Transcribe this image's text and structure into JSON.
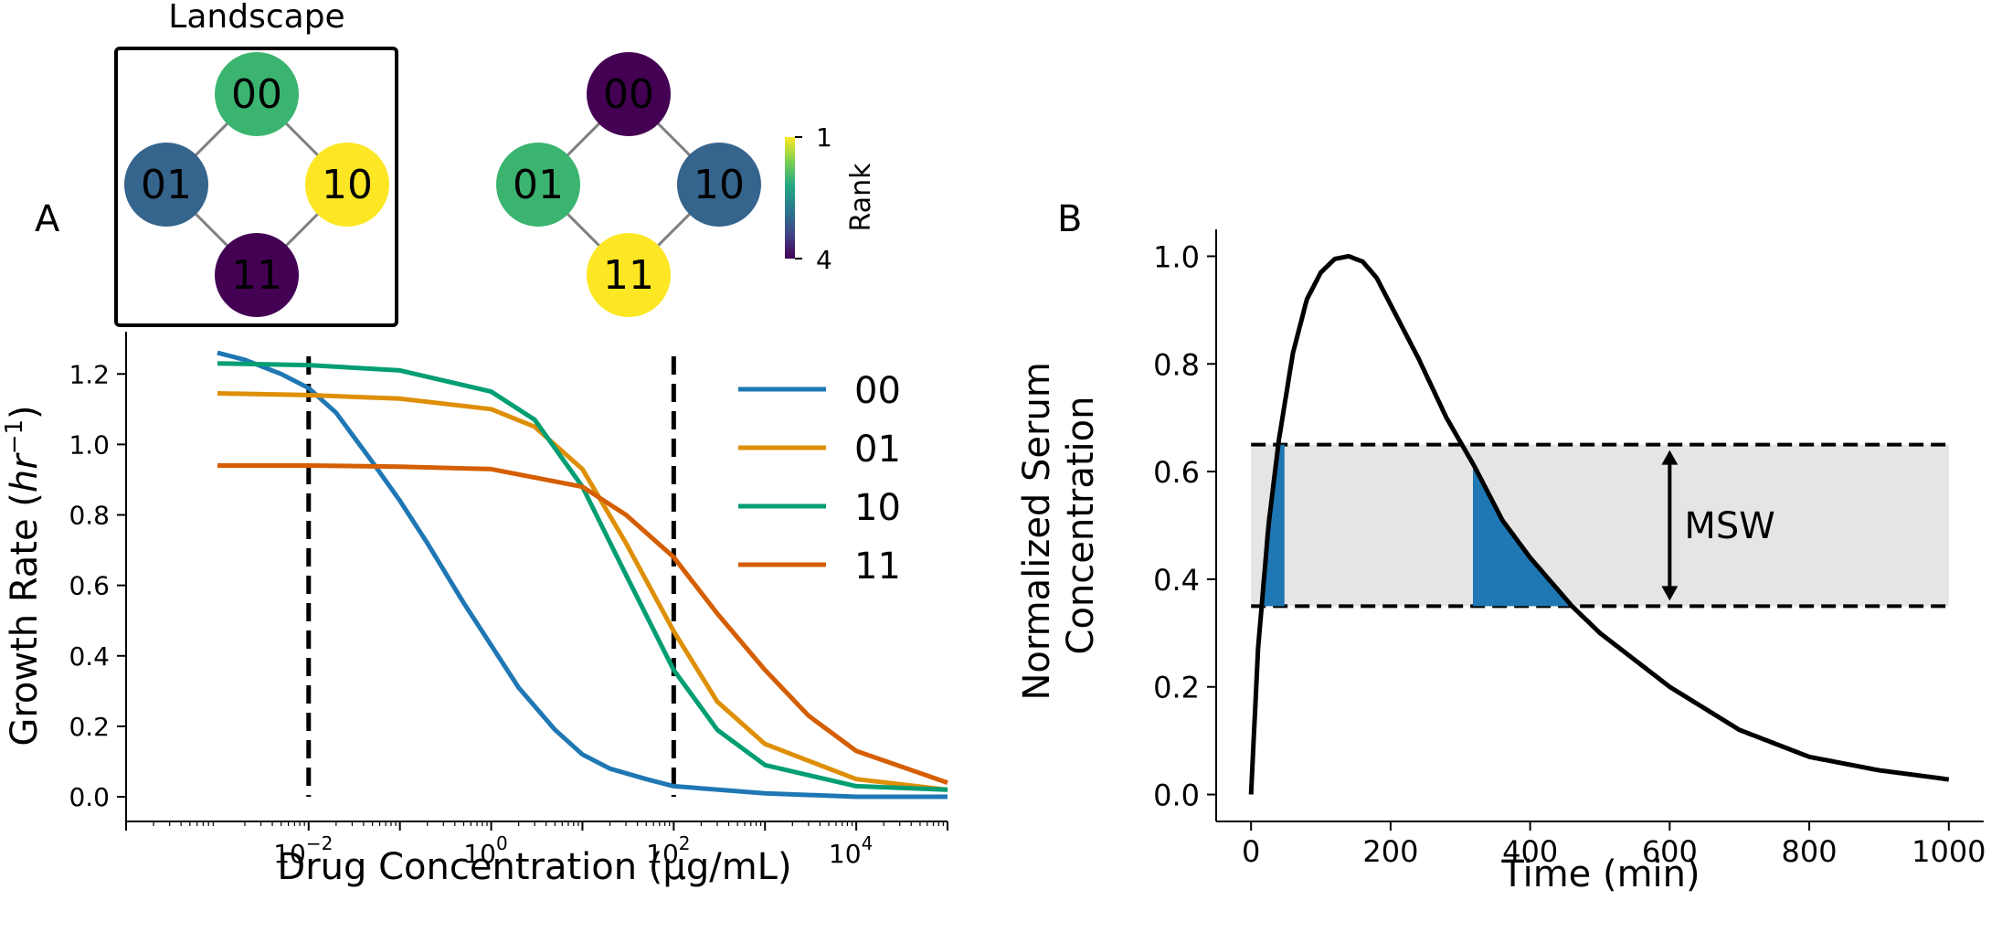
{
  "chart_data": [
    {
      "type": "network",
      "panel": "A-inset-1",
      "title": "Landscape",
      "nodes": [
        {
          "label": "00",
          "rank": 2,
          "color": "#3bb470"
        },
        {
          "label": "01",
          "rank": 3,
          "color": "#35648d"
        },
        {
          "label": "10",
          "rank": 1,
          "color": "#fde724"
        },
        {
          "label": "11",
          "rank": 4,
          "color": "#440154"
        }
      ],
      "edges": [
        [
          "00",
          "01"
        ],
        [
          "00",
          "10"
        ],
        [
          "01",
          "11"
        ],
        [
          "10",
          "11"
        ]
      ]
    },
    {
      "type": "network",
      "panel": "A-inset-2",
      "title": "",
      "nodes": [
        {
          "label": "00",
          "rank": 4,
          "color": "#440154"
        },
        {
          "label": "01",
          "rank": 2,
          "color": "#3bb470"
        },
        {
          "label": "10",
          "rank": 3,
          "color": "#35648d"
        },
        {
          "label": "11",
          "rank": 1,
          "color": "#fde724"
        }
      ],
      "edges": [
        [
          "00",
          "01"
        ],
        [
          "00",
          "10"
        ],
        [
          "01",
          "11"
        ],
        [
          "10",
          "11"
        ]
      ],
      "colorbar": {
        "label": "Rank",
        "ticks": [
          "1",
          "4"
        ],
        "colors": [
          "#fde724",
          "#7ad151",
          "#22a884",
          "#2a788e",
          "#414487",
          "#440154"
        ]
      }
    },
    {
      "type": "line",
      "panel": "A",
      "panel_label": "A",
      "xlabel": "Drug Concentration (µg/mL)",
      "ylabel_prefix": "Growth Rate (",
      "ylabel_italic": "hr",
      "ylabel_sup": "−1",
      "ylabel_suffix": ")",
      "xscale": "log",
      "xlim": [
        0.0001,
        100000
      ],
      "ylim": [
        -0.07,
        1.32
      ],
      "xticks": [
        {
          "value": 0.01,
          "base": "10",
          "exp": "−2"
        },
        {
          "value": 1,
          "base": "10",
          "exp": "0"
        },
        {
          "value": 100,
          "base": "10",
          "exp": "2"
        },
        {
          "value": 10000,
          "base": "10",
          "exp": "4"
        }
      ],
      "yticks": [
        "0.0",
        "0.2",
        "0.4",
        "0.6",
        "0.8",
        "1.0",
        "1.2"
      ],
      "vlines": [
        0.01,
        100
      ],
      "legend_position": "upper-right",
      "series": [
        {
          "name": "00",
          "color": "#1f77b4",
          "x": [
            0.001,
            0.002,
            0.005,
            0.01,
            0.02,
            0.05,
            0.1,
            0.2,
            0.5,
            1,
            2,
            5,
            10,
            20,
            50,
            100,
            1000,
            10000,
            100000
          ],
          "y": [
            1.26,
            1.24,
            1.2,
            1.16,
            1.09,
            0.95,
            0.84,
            0.72,
            0.55,
            0.43,
            0.31,
            0.19,
            0.12,
            0.08,
            0.05,
            0.03,
            0.01,
            0.0,
            0.0
          ]
        },
        {
          "name": "01",
          "color": "#de8f05",
          "x": [
            0.001,
            0.01,
            0.1,
            1,
            3,
            10,
            30,
            100,
            300,
            1000,
            10000,
            100000
          ],
          "y": [
            1.145,
            1.14,
            1.13,
            1.1,
            1.05,
            0.93,
            0.72,
            0.47,
            0.27,
            0.15,
            0.05,
            0.02
          ]
        },
        {
          "name": "10",
          "color": "#029e73",
          "x": [
            0.001,
            0.01,
            0.1,
            1,
            3,
            10,
            30,
            100,
            300,
            1000,
            10000,
            100000
          ],
          "y": [
            1.23,
            1.225,
            1.21,
            1.15,
            1.07,
            0.88,
            0.63,
            0.36,
            0.19,
            0.09,
            0.03,
            0.02
          ]
        },
        {
          "name": "11",
          "color": "#d55e00",
          "x": [
            0.001,
            0.01,
            0.1,
            1,
            10,
            30,
            100,
            300,
            1000,
            3000,
            10000,
            100000
          ],
          "y": [
            0.94,
            0.94,
            0.937,
            0.93,
            0.88,
            0.8,
            0.68,
            0.52,
            0.36,
            0.23,
            0.13,
            0.04
          ]
        }
      ]
    },
    {
      "type": "area",
      "panel": "B",
      "panel_label": "B",
      "xlabel": "Time (min)",
      "ylabel_lines": [
        "Normalized Serum",
        "Concentration"
      ],
      "xlim": [
        -50,
        1050
      ],
      "ylim": [
        -0.05,
        1.05
      ],
      "xticks": [
        "0",
        "200",
        "400",
        "600",
        "800",
        "1000"
      ],
      "yticks": [
        "0.0",
        "0.2",
        "0.4",
        "0.6",
        "0.8",
        "1.0"
      ],
      "msw_band": [
        0.35,
        0.65
      ],
      "msw_label": "MSW",
      "band_color": "#e5e5e5",
      "fill_color": "#1f77b4",
      "curve_color": "#000000",
      "series": [
        {
          "x": [
            0,
            10,
            25,
            40,
            60,
            80,
            100,
            120,
            140,
            160,
            180,
            200,
            240,
            280,
            320,
            360,
            400,
            460,
            500,
            600,
            700,
            800,
            900,
            1000
          ],
          "y": [
            0.0,
            0.27,
            0.5,
            0.66,
            0.82,
            0.92,
            0.97,
            0.995,
            1.0,
            0.99,
            0.96,
            0.91,
            0.81,
            0.7,
            0.61,
            0.51,
            0.44,
            0.35,
            0.3,
            0.2,
            0.12,
            0.07,
            0.045,
            0.028
          ]
        }
      ],
      "shaded_intervals": [
        [
          0,
          48
        ],
        [
          318,
          470
        ]
      ]
    }
  ]
}
